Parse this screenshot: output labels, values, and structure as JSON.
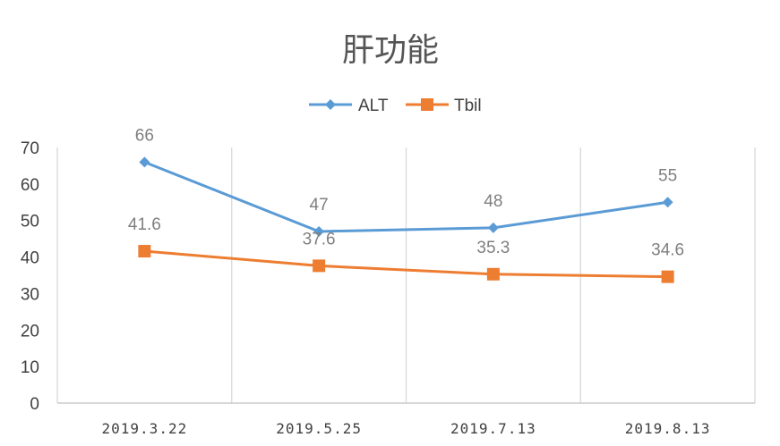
{
  "chart_data": {
    "type": "line",
    "title": "肝功能",
    "categories": [
      "2019.3.22",
      "2019.5.25",
      "2019.7.13",
      "2019.8.13"
    ],
    "series": [
      {
        "name": "ALT",
        "values": [
          66,
          47,
          48,
          55
        ],
        "labels": [
          "66",
          "47",
          "48",
          "55"
        ],
        "color": "#5B9BD5",
        "marker": "diamond"
      },
      {
        "name": "Tbil",
        "values": [
          41.6,
          37.6,
          35.3,
          34.6
        ],
        "labels": [
          "41.6",
          "37.6",
          "35.3",
          "34.6"
        ],
        "color": "#ED7D31",
        "marker": "square"
      }
    ],
    "ylim": [
      0,
      70
    ],
    "yticks": [
      "0",
      "10",
      "20",
      "30",
      "40",
      "50",
      "60",
      "70"
    ],
    "grid": "vertical",
    "legend": "top-center"
  }
}
